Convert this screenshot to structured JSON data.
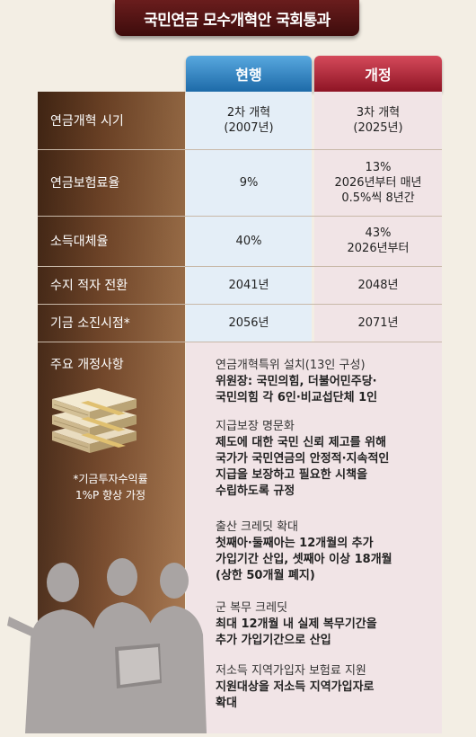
{
  "title": "국민연금 모수개혁안 국회통과",
  "headers": {
    "current": "현행",
    "revised": "개정"
  },
  "rows": [
    {
      "label": "연금개혁 시기",
      "current": [
        "2차 개혁",
        "(2007년)"
      ],
      "revised": [
        "3차 개혁",
        "(2025년)"
      ]
    },
    {
      "label": "연금보험료율",
      "current": [
        "9%"
      ],
      "revised": [
        "13%",
        "2026년부터 매년",
        "0.5%씩 8년간"
      ]
    },
    {
      "label": "소득대체율",
      "current": [
        "40%"
      ],
      "revised": [
        "43%",
        "2026년부터"
      ]
    },
    {
      "label": "수지 적자 전환",
      "current": [
        "2041년"
      ],
      "revised": [
        "2048년"
      ]
    },
    {
      "label": "기금 소진시점*",
      "current": [
        "2056년"
      ],
      "revised": [
        "2071년"
      ]
    }
  ],
  "main_changes": {
    "label": "주요 개정사항",
    "footnote": [
      "*기금투자수익률",
      "1%P 향상 가정"
    ],
    "items": [
      {
        "heading": "연금개혁특위 설치(13인 구성)",
        "body": [
          "위원장: 국민의힘, 더불어민주당·",
          "국민의힘 각 6인·비교섭단체 1인"
        ]
      },
      {
        "heading": "지급보장 명문화",
        "body": [
          "제도에 대한 국민 신뢰 제고를 위해",
          "국가가 국민연금의 안정적·지속적인",
          "지급을 보장하고 필요한 시책을",
          "수립하도록 규정"
        ]
      },
      {
        "heading": "출산 크레딧 확대",
        "body": [
          "첫째아·둘째아는 12개월의 추가",
          "가입기간 산입, 셋째아 이상 18개월",
          "(상한 50개월 폐지)"
        ]
      },
      {
        "heading": "군 복무 크레딧",
        "body": [
          "최대 12개월 내 실제 복무기간을",
          "추가 가입기간으로 산입"
        ]
      },
      {
        "heading": "저소득 지역가입자 보험료 지원",
        "body": [
          "지원대상을 저소득 지역가입자로",
          "확대"
        ]
      }
    ]
  },
  "colors": {
    "current": "#2a7cbf",
    "revised": "#b52a3a",
    "panel": "#6b3e22",
    "title": "#4f1414"
  }
}
